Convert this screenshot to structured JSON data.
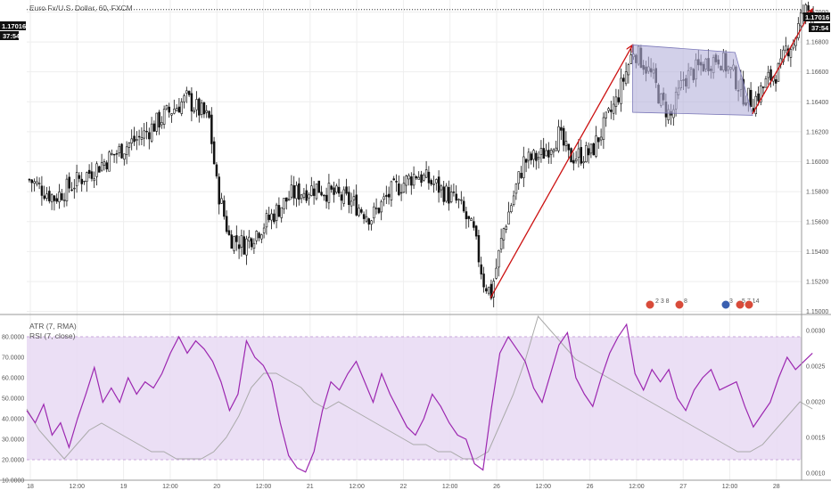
{
  "header": {
    "symbol": "Euro Fx/U.S. Dollar, 60, FXCM",
    "atr_label": "ATR (7, RMA)",
    "rsi_label": "RSI (7, close)"
  },
  "price_tags": {
    "last_price": "1.17016",
    "countdown": "37:54",
    "axis_price": "1.17016",
    "axis_countdown": "37:54"
  },
  "events": [
    {
      "label": "2 3 8"
    },
    {
      "label": "8"
    },
    {
      "label": "3"
    },
    {
      "label": "5 7 14"
    }
  ],
  "colors": {
    "up_candle": "#ffffff",
    "down_candle": "#111111",
    "arrow": "#cc1111",
    "flag_fill": "#b4b1db",
    "rsi_line": "#9c27b0",
    "atr_line": "#aaaaaa",
    "rsi_band": "#e8d9f3"
  },
  "chart_data": [
    {
      "type": "candlestick",
      "title": "Euro Fx/U.S. Dollar, 60, FXCM",
      "ylim": [
        1.1498,
        1.1708
      ],
      "y_ticks": [
        "1.15000",
        "1.15200",
        "1.15400",
        "1.15600",
        "1.15800",
        "1.16000",
        "1.16200",
        "1.16400",
        "1.16600",
        "1.16800",
        "1.17000"
      ],
      "x_ticks": [
        "18",
        "12:00",
        "19",
        "12:00",
        "20",
        "12:00",
        "21",
        "12:00",
        "22",
        "12:00",
        "26",
        "12:00",
        "26",
        "12:00",
        "27",
        "12:00",
        "28"
      ],
      "last_price": 1.17016,
      "close_path": [
        [
          0,
          1.1588
        ],
        [
          10,
          1.1576
        ],
        [
          20,
          1.1588
        ],
        [
          30,
          1.16
        ],
        [
          40,
          1.1612
        ],
        [
          45,
          1.1617
        ],
        [
          55,
          1.1632
        ],
        [
          63,
          1.1642
        ],
        [
          72,
          1.1628
        ],
        [
          75,
          1.1585
        ],
        [
          80,
          1.155
        ],
        [
          86,
          1.1545
        ],
        [
          95,
          1.156
        ],
        [
          105,
          1.1578
        ],
        [
          115,
          1.1583
        ],
        [
          122,
          1.1578
        ],
        [
          130,
          1.1572
        ],
        [
          137,
          1.1563
        ],
        [
          145,
          1.158
        ],
        [
          155,
          1.1592
        ],
        [
          163,
          1.1584
        ],
        [
          172,
          1.1572
        ],
        [
          178,
          1.1552
        ],
        [
          182,
          1.152
        ],
        [
          185,
          1.1512
        ],
        [
          190,
          1.1555
        ],
        [
          198,
          1.16
        ],
        [
          205,
          1.1604
        ],
        [
          212,
          1.1618
        ],
        [
          216,
          1.1603
        ],
        [
          225,
          1.1606
        ],
        [
          235,
          1.164
        ],
        [
          242,
          1.1675
        ],
        [
          246,
          1.1666
        ],
        [
          250,
          1.1655
        ],
        [
          253,
          1.164
        ],
        [
          257,
          1.163
        ],
        [
          262,
          1.1655
        ],
        [
          270,
          1.1665
        ],
        [
          276,
          1.167
        ],
        [
          282,
          1.1658
        ],
        [
          286,
          1.1645
        ],
        [
          290,
          1.164
        ],
        [
          296,
          1.1655
        ],
        [
          301,
          1.1662
        ],
        [
          303,
          1.1675
        ],
        [
          306,
          1.168
        ],
        [
          310,
          1.17
        ],
        [
          314,
          1.1702
        ]
      ],
      "annotations": [
        {
          "type": "arrow",
          "from": [
            185,
            1.1509
          ],
          "to": [
            242,
            1.1678
          ]
        },
        {
          "type": "flag",
          "corners": [
            [
              242,
              1.1678
            ],
            [
              283,
              1.1673
            ],
            [
              290,
              1.1631
            ],
            [
              242,
              1.1633
            ]
          ]
        },
        {
          "type": "arrow",
          "from": [
            290,
            1.1632
          ],
          "to": [
            314,
            1.1702
          ]
        }
      ]
    },
    {
      "type": "line",
      "series": [
        {
          "name": "RSI (7, close)",
          "y_axis": "left",
          "values": [
            44,
            38,
            47,
            32,
            38,
            26,
            40,
            52,
            65,
            48,
            55,
            48,
            60,
            52,
            58,
            55,
            62,
            72,
            80,
            72,
            78,
            74,
            68,
            58,
            44,
            52,
            78,
            70,
            66,
            58,
            38,
            22,
            16,
            14,
            24,
            44,
            58,
            54,
            62,
            68,
            58,
            48,
            62,
            52,
            44,
            36,
            32,
            40,
            52,
            46,
            38,
            32,
            30,
            18,
            15,
            45,
            72,
            80,
            74,
            68,
            55,
            48,
            62,
            76,
            82,
            60,
            52,
            46,
            60,
            72,
            80,
            86,
            62,
            54,
            64,
            58,
            64,
            50,
            44,
            54,
            60,
            64,
            54,
            56,
            58,
            46,
            36,
            42,
            48,
            60,
            70,
            64,
            68,
            72
          ]
        },
        {
          "name": "ATR (7, RMA)",
          "y_axis": "right",
          "values": [
            0.0019,
            0.0016,
            0.0014,
            0.0012,
            0.0014,
            0.0016,
            0.0017,
            0.0016,
            0.0015,
            0.0014,
            0.0013,
            0.0013,
            0.0012,
            0.0012,
            0.0012,
            0.0013,
            0.0015,
            0.0018,
            0.0022,
            0.0024,
            0.0024,
            0.0023,
            0.0022,
            0.002,
            0.0019,
            0.002,
            0.0019,
            0.0018,
            0.0017,
            0.0016,
            0.0015,
            0.0014,
            0.0014,
            0.0013,
            0.0013,
            0.0012,
            0.0012,
            0.0013,
            0.0017,
            0.0021,
            0.0026,
            0.0032,
            0.003,
            0.0028,
            0.0026,
            0.0025,
            0.0024,
            0.0023,
            0.0022,
            0.0021,
            0.002,
            0.0019,
            0.0018,
            0.0017,
            0.0016,
            0.0015,
            0.0014,
            0.0013,
            0.0013,
            0.0014,
            0.0016,
            0.0018,
            0.002,
            0.0019
          ]
        }
      ],
      "left_axis_ticks": [
        "10.0000",
        "20.0000",
        "30.0000",
        "40.0000",
        "50.0000",
        "60.0000",
        "70.0000",
        "80.0000"
      ],
      "right_axis_ticks": [
        "0.0010",
        "0.0015",
        "0.0020",
        "0.0025",
        "0.0030"
      ],
      "left_ylim": [
        10,
        90
      ],
      "right_ylim": [
        0.0009,
        0.0032
      ],
      "bands": [
        20,
        80
      ]
    }
  ]
}
